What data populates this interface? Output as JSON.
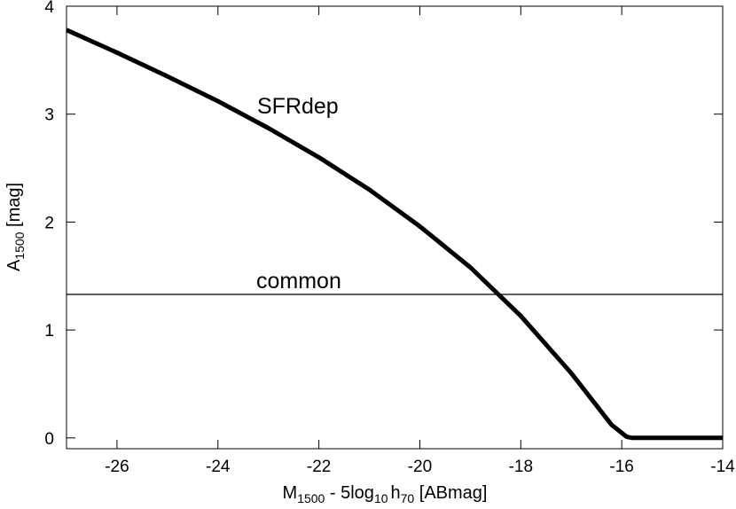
{
  "chart_data": {
    "type": "line",
    "xlabel": {
      "main": "M",
      "main_sub": "1500",
      "mid": " - 5log",
      "mid_sub": "10",
      "tail": "h",
      "tail_sub": "70",
      "end": " [ABmag]"
    },
    "ylabel": {
      "main": "A",
      "sub": "1500",
      "end": " [mag]"
    },
    "xlim": [
      -27,
      -14
    ],
    "ylim": [
      -0.1,
      4
    ],
    "xticks": [
      -26,
      -24,
      -22,
      -20,
      -18,
      -16,
      -14
    ],
    "xtick_labels": [
      "-26",
      "-24",
      "-22",
      "-20",
      "-18",
      "-16",
      "-14"
    ],
    "yticks": [
      0,
      1,
      2,
      3,
      4
    ],
    "ytick_labels": [
      "0",
      "1",
      "2",
      "3",
      "4"
    ],
    "grid": false,
    "series": [
      {
        "name": "SFRdep",
        "x": [
          -27,
          -26,
          -25,
          -24,
          -23,
          -22,
          -21,
          -20,
          -19,
          -18,
          -17,
          -16.2,
          -15.9,
          -15.8,
          -15,
          -14
        ],
        "y": [
          3.78,
          3.57,
          3.35,
          3.12,
          2.87,
          2.6,
          2.3,
          1.96,
          1.58,
          1.13,
          0.6,
          0.12,
          0.01,
          0.0,
          0.0,
          0.0
        ]
      },
      {
        "name": "common",
        "x": [
          -27,
          -14
        ],
        "y": [
          1.33,
          1.33
        ]
      }
    ]
  }
}
